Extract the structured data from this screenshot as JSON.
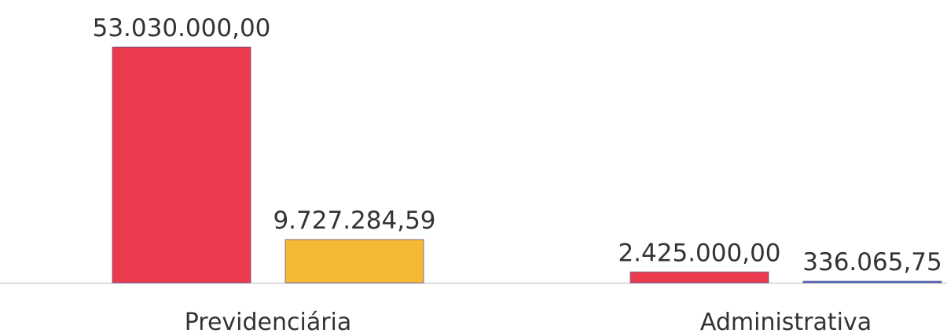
{
  "chart_data": {
    "type": "bar",
    "categories": [
      "Previdenciária",
      "Administrativa"
    ],
    "series": [
      {
        "color": "#ec3a4f",
        "values": [
          53030000,
          2425000
        ],
        "value_labels": [
          "53.030.000,00",
          "2.425.000,00"
        ]
      },
      {
        "colors": [
          "#f5b935",
          "#4472c4"
        ],
        "values": [
          9727284.59,
          336065.75
        ],
        "value_labels": [
          "9.727.284,59",
          "336.065,75"
        ]
      }
    ]
  }
}
